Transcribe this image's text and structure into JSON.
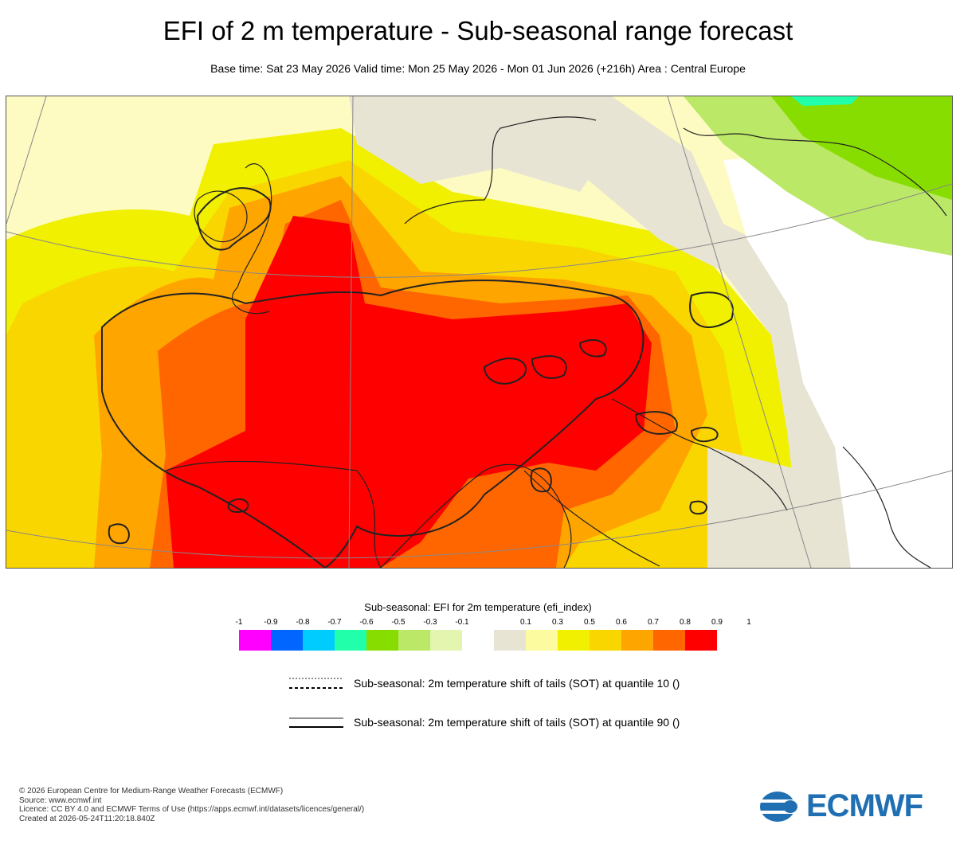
{
  "title": "EFI of 2 m temperature - Sub-seasonal range forecast",
  "subtitle": "Base time: Sat 23 May 2026 Valid time: Mon 25 May 2026 - Mon 01 Jun 2026 (+216h) Area : Central Europe",
  "map": {
    "region": "Central Europe",
    "description_labels": [
      "0.5",
      "0.6",
      "0.1",
      "-0.1",
      "-0.5",
      "0.8",
      "1",
      "0.9"
    ]
  },
  "legend": {
    "title": "Sub-seasonal: EFI for 2m temperature (efi_index)",
    "ticks": [
      "-1",
      "-0.9",
      "-0.8",
      "-0.7",
      "-0.6",
      "-0.5",
      "-0.3",
      "-0.1",
      "0.1",
      "0.3",
      "0.5",
      "0.6",
      "0.7",
      "0.8",
      "0.9",
      "1"
    ],
    "colors": [
      "#ff00ff",
      "#0066ff",
      "#00ccff",
      "#22ffaa",
      "#88dd00",
      "#bbe866",
      "#e4f5b0",
      "#ffffff",
      "#e7e4d4",
      "#fdfba0",
      "#f0f000",
      "#fad600",
      "#ffa500",
      "#ff6600",
      "#ff0000"
    ]
  },
  "contours": [
    {
      "label": "Sub-seasonal: 2m temperature shift of tails (SOT) at quantile 10 ()"
    },
    {
      "label": "Sub-seasonal: 2m temperature shift of tails (SOT) at quantile 90 ()"
    }
  ],
  "footer": {
    "copyright": "© 2026 European Centre for Medium-Range Weather Forecasts (ECMWF)",
    "source": "Source: www.ecmwf.int",
    "licence": "Licence: CC BY 4.0 and ECMWF Terms of Use (https://apps.ecmwf.int/datasets/licences/general/)",
    "created": "Created at 2026-05-24T11:20:18.840Z"
  },
  "logo": {
    "text": "ECMWF",
    "color": "#1f6fb2"
  }
}
